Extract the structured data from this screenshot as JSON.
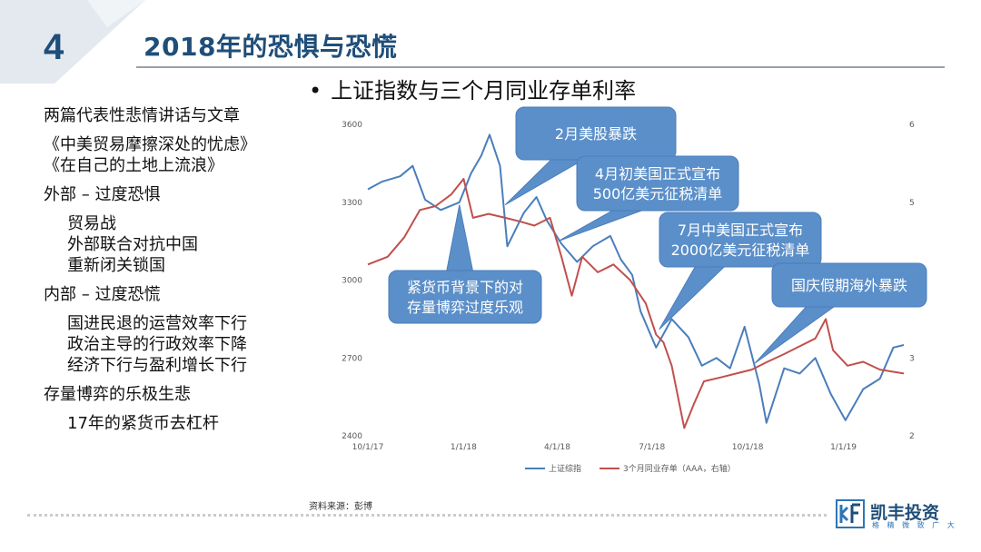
{
  "slide": {
    "number": "4",
    "title": "2018年的恐惧与恐慌",
    "subtitle": "上证指数与三个月同业存单利率",
    "source": "资料来源：彭博"
  },
  "left_text": [
    {
      "text": "两篇代表性悲情讲话与文章",
      "indent": false,
      "gap": false
    },
    {
      "text": "《中美贸易摩擦深处的忧虑》",
      "indent": false,
      "gap": true
    },
    {
      "text": "《在自己的土地上流浪》",
      "indent": false,
      "gap": false
    },
    {
      "text": "外部 – 过度恐惧",
      "indent": false,
      "gap": true
    },
    {
      "text": "贸易战",
      "indent": true,
      "gap": true
    },
    {
      "text": "外部联合对抗中国",
      "indent": true,
      "gap": false
    },
    {
      "text": "重新闭关锁国",
      "indent": true,
      "gap": false
    },
    {
      "text": "内部 – 过度恐慌",
      "indent": false,
      "gap": true
    },
    {
      "text": "国进民退的运营效率下行",
      "indent": true,
      "gap": true
    },
    {
      "text": "政治主导的行政效率下降",
      "indent": true,
      "gap": false
    },
    {
      "text": "经济下行与盈利增长下行",
      "indent": true,
      "gap": false
    },
    {
      "text": "存量博弈的乐极生悲",
      "indent": false,
      "gap": true
    },
    {
      "text": "17年的紧货币去杠杆",
      "indent": true,
      "gap": true
    }
  ],
  "logo": {
    "name": "凯丰投资",
    "slogan": "格 精 微 致 广 大"
  },
  "chart_data": {
    "type": "line",
    "x_tick_labels": [
      "10/1/17",
      "1/1/18",
      "4/1/18",
      "7/1/18",
      "10/1/18",
      "1/1/19"
    ],
    "x_range": [
      "2017-10-01",
      "2019-02-28"
    ],
    "y_left": {
      "ticks": [
        2400,
        2700,
        3000,
        3300,
        3600
      ],
      "range": [
        2400,
        3600
      ]
    },
    "y_right": {
      "ticks": [
        2,
        3,
        4,
        5,
        6
      ],
      "range": [
        2,
        6
      ]
    },
    "legend_position": "bottom",
    "grid": false,
    "series": [
      {
        "name": "上证综指",
        "axis": "left",
        "color": "#4a7ebb",
        "points": [
          [
            "2017-10-01",
            3350
          ],
          [
            "2017-10-15",
            3380
          ],
          [
            "2017-11-01",
            3400
          ],
          [
            "2017-11-13",
            3440
          ],
          [
            "2017-11-25",
            3310
          ],
          [
            "2017-12-10",
            3270
          ],
          [
            "2017-12-28",
            3300
          ],
          [
            "2018-01-08",
            3410
          ],
          [
            "2018-01-18",
            3480
          ],
          [
            "2018-01-26",
            3560
          ],
          [
            "2018-02-05",
            3440
          ],
          [
            "2018-02-12",
            3130
          ],
          [
            "2018-02-28",
            3260
          ],
          [
            "2018-03-12",
            3320
          ],
          [
            "2018-03-22",
            3230
          ],
          [
            "2018-04-05",
            3140
          ],
          [
            "2018-04-20",
            3070
          ],
          [
            "2018-05-05",
            3130
          ],
          [
            "2018-05-22",
            3170
          ],
          [
            "2018-06-01",
            3080
          ],
          [
            "2018-06-12",
            3020
          ],
          [
            "2018-06-20",
            2880
          ],
          [
            "2018-07-05",
            2740
          ],
          [
            "2018-07-20",
            2850
          ],
          [
            "2018-08-05",
            2780
          ],
          [
            "2018-08-18",
            2670
          ],
          [
            "2018-09-01",
            2700
          ],
          [
            "2018-09-14",
            2660
          ],
          [
            "2018-09-28",
            2820
          ],
          [
            "2018-10-12",
            2600
          ],
          [
            "2018-10-19",
            2450
          ],
          [
            "2018-11-05",
            2660
          ],
          [
            "2018-11-20",
            2640
          ],
          [
            "2018-12-05",
            2700
          ],
          [
            "2018-12-20",
            2560
          ],
          [
            "2019-01-03",
            2460
          ],
          [
            "2019-01-20",
            2580
          ],
          [
            "2019-02-05",
            2620
          ],
          [
            "2019-02-18",
            2740
          ],
          [
            "2019-02-28",
            2750
          ]
        ]
      },
      {
        "name": "3个月同业存单（AAA，右轴）",
        "axis": "right",
        "color": "#c0504d",
        "points": [
          [
            "2017-10-01",
            4.2
          ],
          [
            "2017-10-20",
            4.3
          ],
          [
            "2017-11-05",
            4.55
          ],
          [
            "2017-11-20",
            4.9
          ],
          [
            "2017-12-05",
            4.95
          ],
          [
            "2017-12-20",
            5.1
          ],
          [
            "2018-01-01",
            5.3
          ],
          [
            "2018-01-10",
            4.8
          ],
          [
            "2018-01-25",
            4.85
          ],
          [
            "2018-02-10",
            4.8
          ],
          [
            "2018-02-25",
            4.75
          ],
          [
            "2018-03-10",
            4.7
          ],
          [
            "2018-03-25",
            4.8
          ],
          [
            "2018-04-05",
            4.3
          ],
          [
            "2018-04-15",
            3.8
          ],
          [
            "2018-04-25",
            4.3
          ],
          [
            "2018-05-10",
            4.1
          ],
          [
            "2018-05-25",
            4.2
          ],
          [
            "2018-06-10",
            4.0
          ],
          [
            "2018-06-25",
            3.7
          ],
          [
            "2018-07-05",
            3.3
          ],
          [
            "2018-07-12",
            3.2
          ],
          [
            "2018-07-20",
            2.9
          ],
          [
            "2018-08-01",
            2.1
          ],
          [
            "2018-08-10",
            2.4
          ],
          [
            "2018-08-20",
            2.7
          ],
          [
            "2018-09-05",
            2.75
          ],
          [
            "2018-09-20",
            2.8
          ],
          [
            "2018-10-05",
            2.85
          ],
          [
            "2018-10-20",
            2.95
          ],
          [
            "2018-11-05",
            3.05
          ],
          [
            "2018-11-20",
            3.15
          ],
          [
            "2018-12-05",
            3.25
          ],
          [
            "2018-12-15",
            3.5
          ],
          [
            "2018-12-22",
            3.1
          ],
          [
            "2019-01-05",
            2.9
          ],
          [
            "2019-01-20",
            2.95
          ],
          [
            "2019-02-05",
            2.85
          ],
          [
            "2019-02-28",
            2.8
          ]
        ]
      }
    ],
    "annotations": [
      {
        "text": [
          "紧货币背景下的对",
          "存量博弈过度乐观"
        ],
        "point_to": [
          "2017-12-28",
          3290
        ]
      },
      {
        "text": [
          "2月美股暴跌"
        ],
        "point_to": [
          "2018-02-10",
          3290
        ]
      },
      {
        "text": [
          "4月初美国正式宣布",
          "500亿美元征税清单"
        ],
        "point_to": [
          "2018-04-02",
          3150
        ]
      },
      {
        "text": [
          "7月中美国正式宣布",
          "2000亿美元征税清单"
        ],
        "point_to": [
          "2018-07-08",
          2810
        ]
      },
      {
        "text": [
          "国庆假期海外暴跌"
        ],
        "point_to": [
          "2018-10-08",
          2680
        ]
      }
    ]
  }
}
